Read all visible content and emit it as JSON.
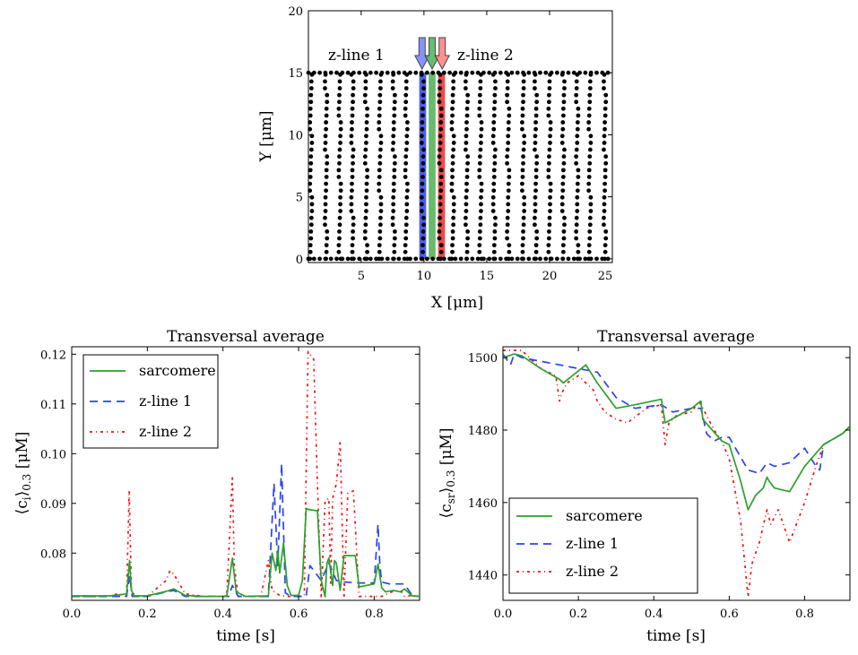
{
  "chart_data": [
    {
      "type": "scatter",
      "title": "",
      "xlabel": "X [μm]",
      "ylabel": "Y [μm]",
      "xlim": [
        0.8,
        25
      ],
      "ylim": [
        -0.3,
        20
      ],
      "xticks": [
        5,
        10,
        15,
        20,
        25
      ],
      "yticks": [
        0,
        5,
        10,
        15,
        20
      ],
      "x_tick_labels": [
        "5",
        "10",
        "15",
        "20",
        "25"
      ],
      "y_tick_labels": [
        "0",
        "5",
        "10",
        "15",
        "20"
      ],
      "dots": {
        "columns_x": [
          1.0,
          2.2,
          3.3,
          4.3,
          5.4,
          6.5,
          7.6,
          8.6,
          9.9,
          11.3,
          12.3,
          13.4,
          14.5,
          15.6,
          16.7,
          17.9,
          18.9,
          20.0,
          21.1,
          22.2,
          23.2,
          24.4
        ],
        "y_min": 0,
        "y_max": 15,
        "y_step": 0.55,
        "boundary_rows_y": [
          0,
          15
        ],
        "boundary_step": 0.45
      },
      "highlight_bands": [
        {
          "name": "z-line 1",
          "x": 9.9,
          "width": 0.55,
          "color": "#2a44ee"
        },
        {
          "name": "sarcomere",
          "x": 10.65,
          "width": 0.55,
          "color": "#4caf50"
        },
        {
          "name": "z-line 2",
          "x": 11.4,
          "width": 0.55,
          "color": "#ee2a2a"
        }
      ],
      "arrows": [
        {
          "x": 9.85,
          "color": "#7a86ff"
        },
        {
          "x": 10.65,
          "color": "#55b85f"
        },
        {
          "x": 11.45,
          "color": "#ff8585"
        }
      ],
      "annotations": [
        {
          "text": "z-line 1",
          "x": 2.0,
          "y": 16.4,
          "color": "#1a1adb"
        },
        {
          "text": "z-line 2",
          "x": 12.2,
          "y": 16.4,
          "color": "#dd1111"
        }
      ]
    },
    {
      "type": "line",
      "title": "Transversal average",
      "xlabel": "time [s]",
      "ylabel": "⟨c_i⟩_0.3 [μM]",
      "ylabel_main": "⟨c",
      "ylabel_sub1": "i",
      "ylabel_mid": "⟩",
      "ylabel_sub2": "0.3",
      "ylabel_end": " [μM]",
      "xlim": [
        0,
        0.92
      ],
      "ylim": [
        0.0705,
        0.1215
      ],
      "xticks": [
        0.0,
        0.2,
        0.4,
        0.6,
        0.8
      ],
      "yticks": [
        0.08,
        0.09,
        0.1,
        0.11,
        0.12
      ],
      "x_tick_labels": [
        "0.0",
        "0.2",
        "0.4",
        "0.6",
        "0.8"
      ],
      "y_tick_labels": [
        "0.08",
        "0.09",
        "0.10",
        "0.11",
        "0.12"
      ],
      "legend_position": "top-left",
      "series": [
        {
          "name": "sarcomere",
          "color": "#2ca02c",
          "dash": "",
          "x": [
            0,
            0.1,
            0.145,
            0.153,
            0.158,
            0.165,
            0.2,
            0.25,
            0.27,
            0.3,
            0.35,
            0.41,
            0.425,
            0.435,
            0.46,
            0.52,
            0.53,
            0.54,
            0.545,
            0.55,
            0.56,
            0.57,
            0.58,
            0.6,
            0.61,
            0.62,
            0.625,
            0.65,
            0.66,
            0.67,
            0.675,
            0.68,
            0.69,
            0.695,
            0.7,
            0.71,
            0.72,
            0.75,
            0.76,
            0.8,
            0.81,
            0.82,
            0.83,
            0.85,
            0.87,
            0.88,
            0.9,
            0.92
          ],
          "y": [
            0.0714,
            0.0714,
            0.0718,
            0.0785,
            0.0725,
            0.0714,
            0.0714,
            0.0723,
            0.0728,
            0.0715,
            0.0713,
            0.0713,
            0.079,
            0.0722,
            0.0713,
            0.0714,
            0.08,
            0.0765,
            0.0805,
            0.076,
            0.082,
            0.0735,
            0.0715,
            0.0715,
            0.0745,
            0.089,
            0.0888,
            0.0885,
            0.0745,
            0.0712,
            0.078,
            0.079,
            0.0735,
            0.0785,
            0.078,
            0.0725,
            0.0795,
            0.0795,
            0.0732,
            0.0738,
            0.0778,
            0.073,
            0.0722,
            0.0725,
            0.0722,
            0.0728,
            0.0714,
            0.0713
          ]
        },
        {
          "name": "z-line 1",
          "color": "#2a44ee",
          "dash": "9,6",
          "x": [
            0,
            0.1,
            0.145,
            0.153,
            0.16,
            0.2,
            0.25,
            0.27,
            0.3,
            0.4,
            0.415,
            0.425,
            0.44,
            0.5,
            0.52,
            0.535,
            0.545,
            0.555,
            0.565,
            0.58,
            0.6,
            0.62,
            0.63,
            0.66,
            0.68,
            0.7,
            0.72,
            0.76,
            0.8,
            0.81,
            0.815,
            0.82,
            0.84,
            0.88,
            0.9,
            0.92
          ],
          "y": [
            0.0713,
            0.0713,
            0.0713,
            0.0755,
            0.0713,
            0.0713,
            0.0722,
            0.0725,
            0.0713,
            0.0713,
            0.0713,
            0.0735,
            0.0713,
            0.0713,
            0.0713,
            0.094,
            0.0775,
            0.098,
            0.072,
            0.0713,
            0.0713,
            0.0713,
            0.0775,
            0.0745,
            0.078,
            0.0745,
            0.0742,
            0.074,
            0.074,
            0.0858,
            0.0775,
            0.0742,
            0.0738,
            0.0738,
            0.0715,
            0.0713
          ]
        },
        {
          "name": "z-line 2",
          "color": "#ee1111",
          "dash": "3,4,1,4",
          "x": [
            0,
            0.1,
            0.12,
            0.145,
            0.152,
            0.158,
            0.17,
            0.2,
            0.25,
            0.26,
            0.27,
            0.3,
            0.35,
            0.4,
            0.41,
            0.425,
            0.43,
            0.44,
            0.5,
            0.52,
            0.53,
            0.55,
            0.57,
            0.6,
            0.615,
            0.625,
            0.64,
            0.65,
            0.66,
            0.67,
            0.68,
            0.685,
            0.69,
            0.7,
            0.71,
            0.72,
            0.73,
            0.745,
            0.76,
            0.78,
            0.8,
            0.82,
            0.85,
            0.87,
            0.88,
            0.9,
            0.92
          ],
          "y": [
            0.0713,
            0.0713,
            0.0718,
            0.0713,
            0.0925,
            0.0725,
            0.0713,
            0.0713,
            0.0745,
            0.0765,
            0.0758,
            0.0718,
            0.0713,
            0.0713,
            0.0715,
            0.0955,
            0.0775,
            0.0713,
            0.0713,
            0.0785,
            0.0725,
            0.0715,
            0.0713,
            0.0713,
            0.0715,
            0.1205,
            0.119,
            0.0935,
            0.071,
            0.0905,
            0.091,
            0.0735,
            0.091,
            0.094,
            0.1025,
            0.071,
            0.092,
            0.0925,
            0.0713,
            0.0713,
            0.0713,
            0.0713,
            0.0723,
            0.0725,
            0.0713,
            0.0715,
            0.0713
          ]
        }
      ]
    },
    {
      "type": "line",
      "title": "Transversal average",
      "xlabel": "time [s]",
      "ylabel": "⟨c_sr⟩_0.3 [μM]",
      "ylabel_main": "⟨c",
      "ylabel_sub1": "sr",
      "ylabel_mid": "⟩",
      "ylabel_sub2": "0.3",
      "ylabel_end": " [μM]",
      "xlim": [
        0,
        0.92
      ],
      "ylim": [
        1433,
        1503
      ],
      "xticks": [
        0.0,
        0.2,
        0.4,
        0.6,
        0.8
      ],
      "yticks": [
        1440,
        1460,
        1480,
        1500
      ],
      "x_tick_labels": [
        "0.0",
        "0.2",
        "0.4",
        "0.6",
        "0.8"
      ],
      "y_tick_labels": [
        "1440",
        "1460",
        "1480",
        "1500"
      ],
      "legend_position": "bottom-left",
      "series": [
        {
          "name": "sarcomere",
          "color": "#2ca02c",
          "dash": "",
          "x": [
            0,
            0.03,
            0.05,
            0.1,
            0.15,
            0.16,
            0.22,
            0.25,
            0.3,
            0.35,
            0.42,
            0.43,
            0.5,
            0.525,
            0.53,
            0.58,
            0.6,
            0.63,
            0.65,
            0.67,
            0.69,
            0.7,
            0.705,
            0.72,
            0.76,
            0.8,
            0.85,
            0.9,
            0.92
          ],
          "y": [
            1500,
            1501,
            1500.5,
            1497,
            1494,
            1493,
            1498,
            1493,
            1486,
            1487,
            1488.5,
            1482,
            1486,
            1488,
            1483,
            1477,
            1476,
            1466,
            1458,
            1462,
            1464,
            1467,
            1466,
            1464,
            1463,
            1470,
            1476,
            1479,
            1481
          ]
        },
        {
          "name": "z-line 1",
          "color": "#2a44ee",
          "dash": "9,6",
          "x": [
            0,
            0.02,
            0.03,
            0.05,
            0.1,
            0.15,
            0.2,
            0.25,
            0.3,
            0.35,
            0.42,
            0.45,
            0.5,
            0.525,
            0.54,
            0.56,
            0.58,
            0.6,
            0.65,
            0.68,
            0.7,
            0.72,
            0.76,
            0.8,
            0.83,
            0.84,
            0.85,
            0.9,
            0.92
          ],
          "y": [
            1501,
            1498,
            1501,
            1500,
            1499,
            1498,
            1497,
            1496,
            1489,
            1486,
            1487,
            1485,
            1486,
            1486,
            1479,
            1477,
            1478,
            1478,
            1469,
            1468,
            1471,
            1470,
            1471,
            1475,
            1470,
            1469,
            1476,
            1479,
            1481
          ]
        },
        {
          "name": "z-line 2",
          "color": "#ee1111",
          "dash": "3,4,1,4",
          "x": [
            0,
            0.05,
            0.1,
            0.14,
            0.15,
            0.155,
            0.17,
            0.2,
            0.24,
            0.25,
            0.27,
            0.3,
            0.33,
            0.38,
            0.42,
            0.43,
            0.44,
            0.46,
            0.5,
            0.52,
            0.53,
            0.56,
            0.58,
            0.6,
            0.63,
            0.65,
            0.66,
            0.68,
            0.7,
            0.71,
            0.73,
            0.75,
            0.76,
            0.8,
            0.83,
            0.85,
            0.9,
            0.92
          ],
          "y": [
            1502,
            1502,
            1497,
            1495,
            1488,
            1490,
            1493,
            1495,
            1491,
            1488,
            1485,
            1483,
            1482,
            1486,
            1487,
            1476,
            1482,
            1484,
            1485,
            1488,
            1486,
            1480,
            1477,
            1472,
            1455,
            1434,
            1443,
            1449,
            1458,
            1454,
            1458,
            1452,
            1449,
            1460,
            1470,
            1476,
            1479,
            1481
          ]
        }
      ]
    }
  ]
}
